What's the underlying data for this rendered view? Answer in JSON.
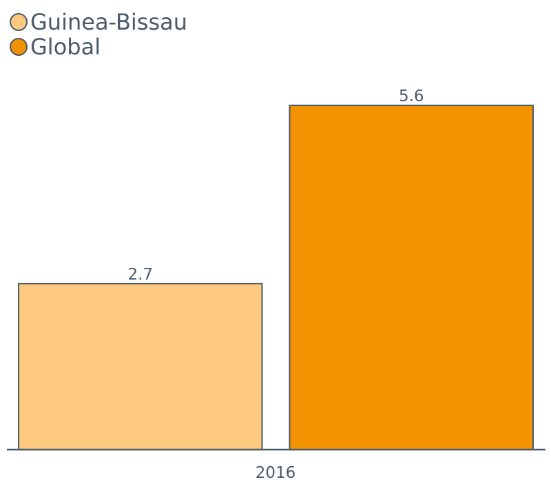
{
  "chart_data": {
    "type": "bar",
    "categories": [
      "2016"
    ],
    "series": [
      {
        "name": "Guinea-Bissau",
        "values": [
          2.7
        ],
        "color": "#fcc97f"
      },
      {
        "name": "Global",
        "values": [
          5.6
        ],
        "color": "#f29200"
      }
    ],
    "ylim": [
      0,
      5.6
    ],
    "grid": false,
    "legend_position": "top-left",
    "outline_color": "#4a5a68"
  }
}
